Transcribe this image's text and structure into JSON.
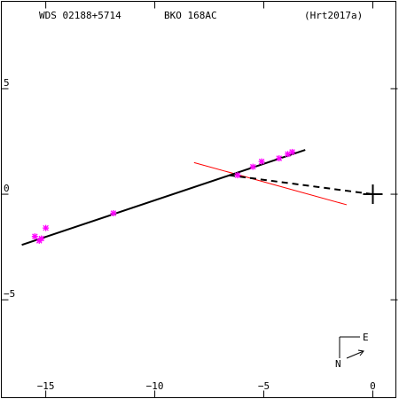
{
  "header": {
    "system": "WDS 02188+5714",
    "pair": "BKO 168AC",
    "reference": "(Hrt2017a)"
  },
  "colors": {
    "axes": "#000000",
    "observations": "#ff00ff",
    "orbit_fit": "#000000",
    "residual_line": "#ff0000"
  },
  "compass": {
    "east_label": "E",
    "north_label": "N"
  },
  "chart_data": {
    "type": "scatter",
    "title": "",
    "xlabel": "",
    "ylabel": "",
    "xlim": [
      -17.1,
      1.2
    ],
    "ylim": [
      -9.7,
      9.2
    ],
    "x_ticks": [
      -15,
      -10,
      -5,
      0
    ],
    "y_ticks": [
      5,
      0,
      -5
    ],
    "x_tick_labels": [
      "−15",
      "−10",
      "−5",
      "0"
    ],
    "y_tick_labels": [
      "5",
      "0",
      "−5"
    ],
    "grid": false,
    "observations": [
      {
        "x": -15.5,
        "y": -2.0
      },
      {
        "x": -15.3,
        "y": -2.2
      },
      {
        "x": -15.2,
        "y": -2.1
      },
      {
        "x": -15.0,
        "y": -1.6
      },
      {
        "x": -11.9,
        "y": -0.9
      },
      {
        "x": -6.2,
        "y": 0.9
      },
      {
        "x": -5.5,
        "y": 1.3
      },
      {
        "x": -5.1,
        "y": 1.55
      },
      {
        "x": -4.3,
        "y": 1.7
      },
      {
        "x": -3.9,
        "y": 1.9
      },
      {
        "x": -3.7,
        "y": 2.0
      }
    ],
    "fit_line": {
      "x": [
        -16.1,
        -3.1
      ],
      "y": [
        -2.4,
        2.1
      ]
    },
    "residual_line": {
      "x": [
        -8.2,
        -1.2
      ],
      "y": [
        1.5,
        -0.5
      ]
    },
    "dashed_line": {
      "x": [
        -6.6,
        0.0
      ],
      "y": [
        0.9,
        0.0
      ]
    },
    "primary_star": {
      "x": 0.0,
      "y": 0.0
    }
  }
}
